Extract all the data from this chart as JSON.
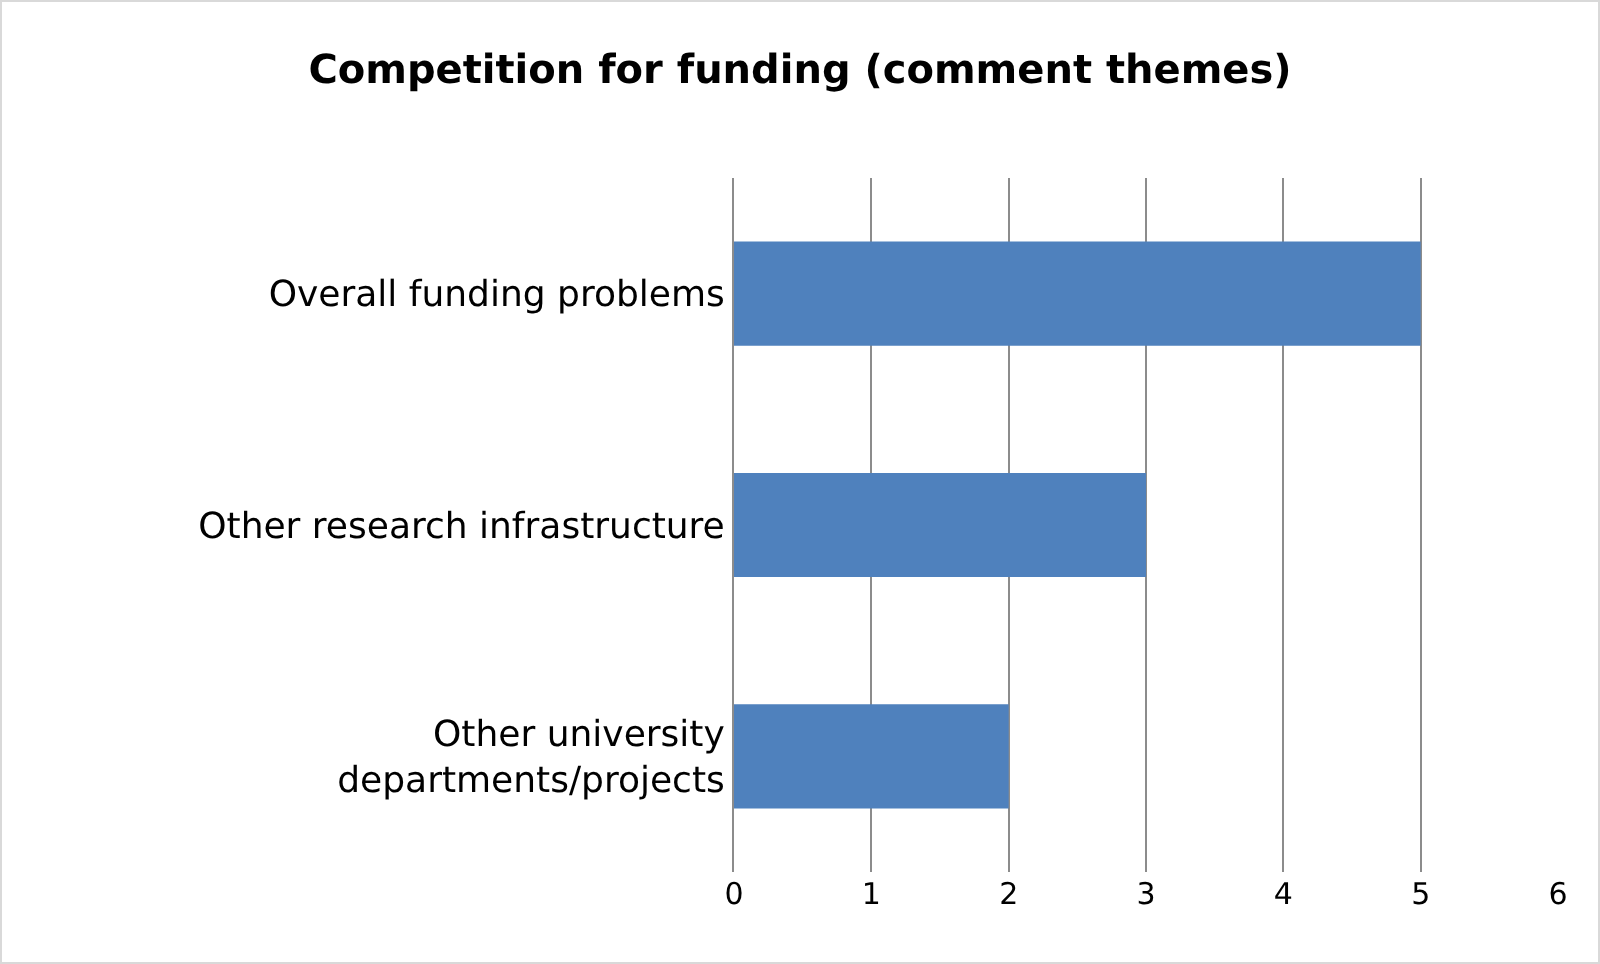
{
  "chart_data": {
    "type": "bar",
    "title": "Competition for funding (comment themes)",
    "orientation": "horizontal",
    "categories": [
      "Overall funding problems",
      "Other research infrastructure",
      "Other university departments/projects"
    ],
    "values": [
      5,
      3,
      2
    ],
    "color": "#4f81bd",
    "xlim": [
      0,
      6
    ],
    "xticks": [
      0,
      1,
      2,
      3,
      4,
      5,
      6
    ],
    "grid": "x",
    "legend": false
  }
}
